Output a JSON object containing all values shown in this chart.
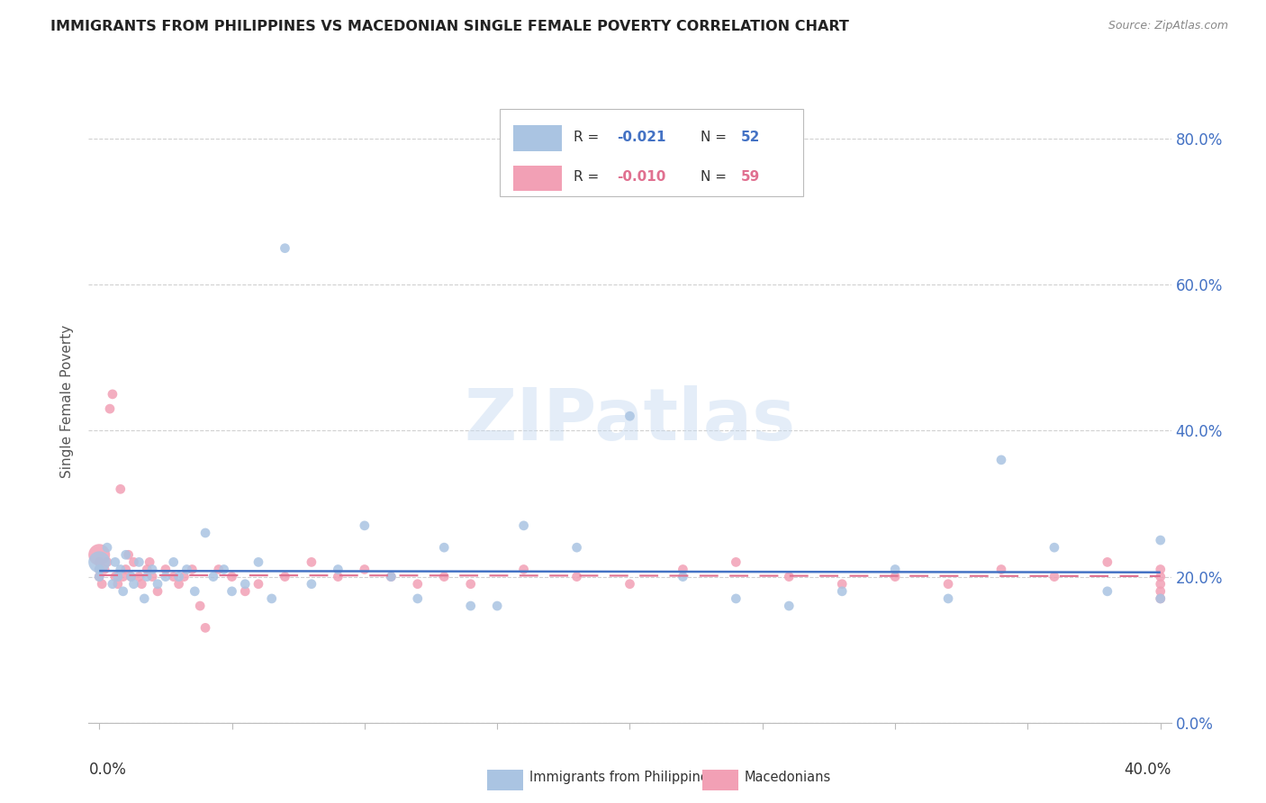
{
  "title": "IMMIGRANTS FROM PHILIPPINES VS MACEDONIAN SINGLE FEMALE POVERTY CORRELATION CHART",
  "source": "Source: ZipAtlas.com",
  "ylabel": "Single Female Poverty",
  "ytick_values": [
    0.0,
    0.2,
    0.4,
    0.6,
    0.8
  ],
  "ytick_labels": [
    "0.0%",
    "20.0%",
    "40.0%",
    "60.0%",
    "80.0%"
  ],
  "xlim": [
    0.0,
    0.4
  ],
  "ylim": [
    0.0,
    0.88
  ],
  "legend_r1": "-0.021",
  "legend_n1": "52",
  "legend_r2": "-0.010",
  "legend_n2": "59",
  "color_philippines": "#aac4e2",
  "color_macedonian": "#f2a0b5",
  "color_philippines_line": "#4472c4",
  "color_macedonian_line": "#e07090",
  "color_right_axis": "#4472c4",
  "background_color": "#ffffff",
  "grid_color": "#cccccc",
  "phil_x": [
    0.0,
    0.0,
    0.0,
    0.003,
    0.005,
    0.006,
    0.007,
    0.008,
    0.009,
    0.01,
    0.012,
    0.013,
    0.015,
    0.017,
    0.018,
    0.02,
    0.022,
    0.025,
    0.028,
    0.03,
    0.033,
    0.036,
    0.04,
    0.043,
    0.047,
    0.05,
    0.055,
    0.06,
    0.065,
    0.07,
    0.08,
    0.09,
    0.1,
    0.11,
    0.12,
    0.13,
    0.14,
    0.15,
    0.16,
    0.18,
    0.2,
    0.22,
    0.24,
    0.26,
    0.28,
    0.3,
    0.32,
    0.34,
    0.36,
    0.38,
    0.4,
    0.4
  ],
  "phil_y": [
    0.22,
    0.21,
    0.2,
    0.24,
    0.19,
    0.22,
    0.2,
    0.21,
    0.18,
    0.23,
    0.2,
    0.19,
    0.22,
    0.17,
    0.2,
    0.21,
    0.19,
    0.2,
    0.22,
    0.2,
    0.21,
    0.18,
    0.26,
    0.2,
    0.21,
    0.18,
    0.19,
    0.22,
    0.17,
    0.65,
    0.19,
    0.21,
    0.27,
    0.2,
    0.17,
    0.24,
    0.16,
    0.16,
    0.27,
    0.24,
    0.42,
    0.2,
    0.17,
    0.16,
    0.18,
    0.21,
    0.17,
    0.36,
    0.24,
    0.18,
    0.25,
    0.17
  ],
  "phil_sizes": [
    300,
    60,
    60,
    60,
    60,
    60,
    60,
    60,
    60,
    60,
    60,
    60,
    60,
    60,
    60,
    60,
    60,
    60,
    60,
    60,
    60,
    60,
    60,
    60,
    60,
    60,
    60,
    60,
    60,
    60,
    60,
    60,
    60,
    60,
    60,
    60,
    60,
    60,
    60,
    60,
    60,
    60,
    60,
    60,
    60,
    60,
    60,
    60,
    60,
    60,
    60,
    60
  ],
  "mac_x": [
    0.0,
    0.0,
    0.0,
    0.0,
    0.001,
    0.002,
    0.003,
    0.004,
    0.005,
    0.006,
    0.007,
    0.008,
    0.009,
    0.01,
    0.011,
    0.012,
    0.013,
    0.015,
    0.016,
    0.018,
    0.019,
    0.02,
    0.022,
    0.025,
    0.028,
    0.03,
    0.032,
    0.035,
    0.038,
    0.04,
    0.045,
    0.05,
    0.055,
    0.06,
    0.07,
    0.08,
    0.09,
    0.1,
    0.11,
    0.12,
    0.13,
    0.14,
    0.16,
    0.18,
    0.2,
    0.22,
    0.24,
    0.26,
    0.28,
    0.3,
    0.32,
    0.34,
    0.36,
    0.38,
    0.4,
    0.4,
    0.4,
    0.4,
    0.4
  ],
  "mac_y": [
    0.23,
    0.22,
    0.21,
    0.2,
    0.19,
    0.21,
    0.22,
    0.43,
    0.45,
    0.2,
    0.19,
    0.32,
    0.2,
    0.21,
    0.23,
    0.2,
    0.22,
    0.2,
    0.19,
    0.21,
    0.22,
    0.2,
    0.18,
    0.21,
    0.2,
    0.19,
    0.2,
    0.21,
    0.16,
    0.13,
    0.21,
    0.2,
    0.18,
    0.19,
    0.2,
    0.22,
    0.2,
    0.21,
    0.2,
    0.19,
    0.2,
    0.19,
    0.21,
    0.2,
    0.19,
    0.21,
    0.22,
    0.2,
    0.19,
    0.2,
    0.19,
    0.21,
    0.2,
    0.22,
    0.21,
    0.19,
    0.18,
    0.2,
    0.17
  ],
  "mac_sizes": [
    300,
    60,
    60,
    60,
    60,
    60,
    60,
    60,
    60,
    60,
    60,
    60,
    60,
    60,
    60,
    60,
    60,
    60,
    60,
    60,
    60,
    60,
    60,
    60,
    60,
    60,
    60,
    60,
    60,
    60,
    60,
    60,
    60,
    60,
    60,
    60,
    60,
    60,
    60,
    60,
    60,
    60,
    60,
    60,
    60,
    60,
    60,
    60,
    60,
    60,
    60,
    60,
    60,
    60,
    60,
    60,
    60,
    60,
    60
  ]
}
